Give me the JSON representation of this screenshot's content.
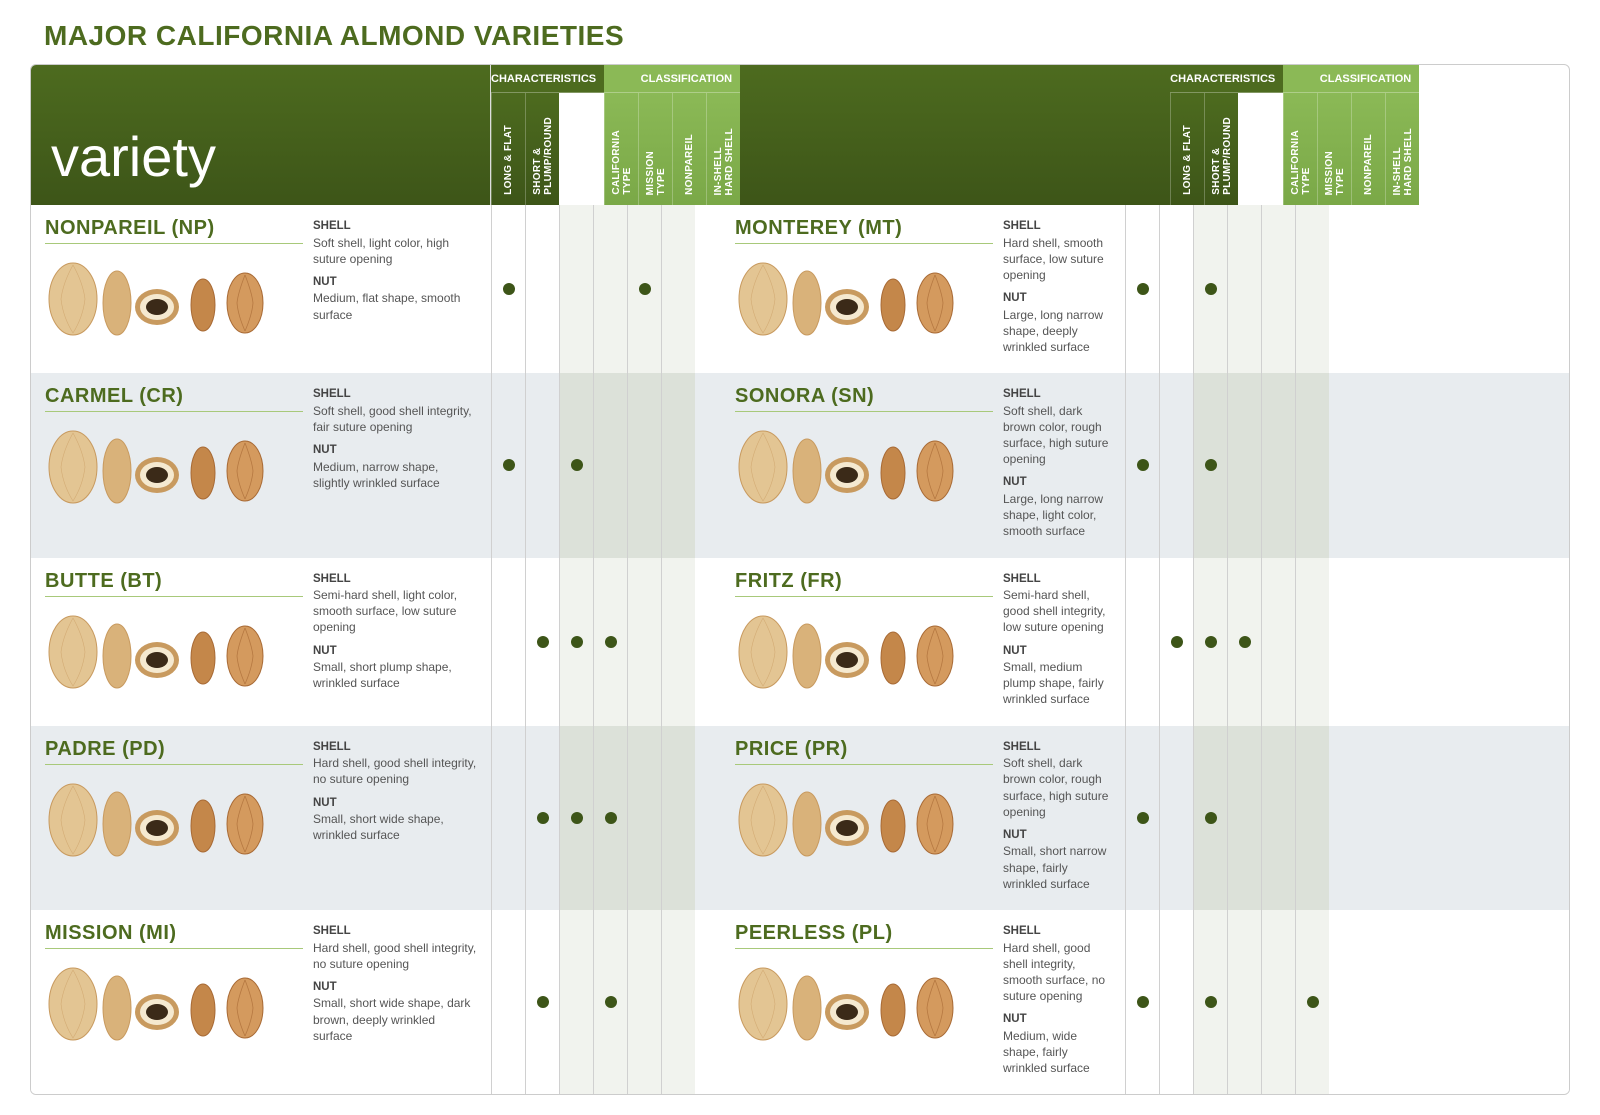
{
  "title": "MAJOR CALIFORNIA ALMOND VARIETIES",
  "variety_label": "variety",
  "colors": {
    "title": "#4d6b1f",
    "header_dark": "#4d6b1f",
    "header_dark_grad": "#3d5518",
    "header_light": "#8bb956",
    "header_light_grad": "#7aa847",
    "variety_name": "#4d6b1f",
    "underline": "#a8c97a",
    "dot": "#3d5518",
    "row_odd": "#ffffff",
    "row_even": "#e8ecef",
    "class_col_odd": "#f1f3ee",
    "class_col_even": "#dce1d9",
    "text": "#555555",
    "text_label": "#444444"
  },
  "section_headers": {
    "characteristics": "CHARACTERISTICS",
    "classification": "CLASSIFICATION"
  },
  "columns": {
    "characteristics": [
      "LONG & FLAT",
      "SHORT &\nPLUMP/ROUND"
    ],
    "classification": [
      "CALIFORNIA\nTYPE",
      "MISSION\nTYPE",
      "NONPAREIL",
      "IN-SHELL\nHARD SHELL"
    ]
  },
  "desc_labels": {
    "shell": "SHELL",
    "nut": "NUT"
  },
  "rows": [
    {
      "left": {
        "name": "NONPAREIL (NP)",
        "shell": "Soft shell, light color, high suture opening",
        "nut": "Medium, flat shape, smooth surface",
        "dots": {
          "long_flat": true,
          "short_plump": false,
          "california": false,
          "mission": false,
          "nonpareil": true,
          "inshell": false
        }
      },
      "right": {
        "name": "MONTEREY (MT)",
        "shell": "Hard shell, smooth surface, low suture opening",
        "nut": "Large, long narrow shape, deeply wrinkled surface",
        "dots": {
          "long_flat": true,
          "short_plump": false,
          "california": true,
          "mission": false,
          "nonpareil": false,
          "inshell": false
        }
      }
    },
    {
      "left": {
        "name": "CARMEL (CR)",
        "shell": "Soft shell, good shell integrity, fair suture opening",
        "nut": "Medium, narrow shape, slightly wrinkled surface",
        "dots": {
          "long_flat": true,
          "short_plump": false,
          "california": true,
          "mission": false,
          "nonpareil": false,
          "inshell": false
        }
      },
      "right": {
        "name": "SONORA (SN)",
        "shell": "Soft shell, dark brown color, rough surface, high suture opening",
        "nut": "Large, long narrow shape, light color, smooth surface",
        "dots": {
          "long_flat": true,
          "short_plump": false,
          "california": true,
          "mission": false,
          "nonpareil": false,
          "inshell": false
        }
      }
    },
    {
      "left": {
        "name": "BUTTE (BT)",
        "shell": "Semi-hard shell, light color, smooth surface, low suture opening",
        "nut": "Small, short plump shape, wrinkled surface",
        "dots": {
          "long_flat": false,
          "short_plump": true,
          "california": true,
          "mission": true,
          "nonpareil": false,
          "inshell": false
        }
      },
      "right": {
        "name": "FRITZ (FR)",
        "shell": "Semi-hard shell, good shell integrity, low suture opening",
        "nut": "Small, medium plump shape, fairly wrinkled surface",
        "dots": {
          "long_flat": false,
          "short_plump": true,
          "california": true,
          "mission": true,
          "nonpareil": false,
          "inshell": false
        }
      }
    },
    {
      "left": {
        "name": "PADRE (PD)",
        "shell": "Hard shell, good shell integrity, no suture opening",
        "nut": "Small, short wide shape, wrinkled surface",
        "dots": {
          "long_flat": false,
          "short_plump": true,
          "california": true,
          "mission": true,
          "nonpareil": false,
          "inshell": false
        }
      },
      "right": {
        "name": "PRICE (PR)",
        "shell": "Soft shell, dark brown color, rough surface, high suture opening",
        "nut": "Small, short narrow shape, fairly wrinkled surface",
        "dots": {
          "long_flat": true,
          "short_plump": false,
          "california": true,
          "mission": false,
          "nonpareil": false,
          "inshell": false
        }
      }
    },
    {
      "left": {
        "name": "MISSION (MI)",
        "shell": "Hard shell, good shell integrity, no suture opening",
        "nut": "Small, short wide shape, dark brown, deeply wrinkled surface",
        "dots": {
          "long_flat": false,
          "short_plump": true,
          "california": false,
          "mission": true,
          "nonpareil": false,
          "inshell": false
        }
      },
      "right": {
        "name": "PEERLESS (PL)",
        "shell": "Hard shell, good shell integrity, smooth surface, no suture opening",
        "nut": "Medium, wide shape, fairly wrinkled surface",
        "dots": {
          "long_flat": true,
          "short_plump": false,
          "california": true,
          "mission": false,
          "nonpareil": false,
          "inshell": true
        }
      }
    }
  ],
  "almond_illustration": {
    "note": "Each variety shows 4-5 almond views: in-shell front, in-shell side, cross-section, kernel side, kernel front",
    "shell_colors": [
      "#d9b27a",
      "#c89a5f",
      "#e3c593"
    ],
    "kernel_colors": [
      "#c4874a",
      "#a86a35",
      "#d49a5e"
    ],
    "cross_section_inner": "#f5e9d0",
    "cross_section_nut": "#3b2a18"
  }
}
